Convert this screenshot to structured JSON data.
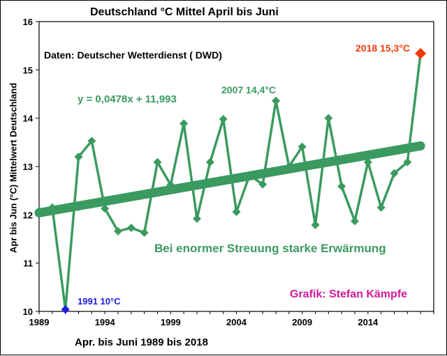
{
  "chart_data": {
    "type": "line",
    "title": "Deutschland °C Mittel April bis Juni",
    "xlabel": "Apr. bis Juni 1989 bis 2018",
    "ylabel": "Apr bis Jun (°C) Mittelwert Deutschland",
    "xlim": [
      1989,
      2019
    ],
    "ylim": [
      10,
      16
    ],
    "x_ticks": [
      1989,
      1994,
      1999,
      2004,
      2009,
      2014
    ],
    "y_ticks": [
      10,
      11,
      12,
      13,
      14,
      15,
      16
    ],
    "grid": false,
    "series": [
      {
        "color": "#3a9a60",
        "x": [
          1989,
          1990,
          1991,
          1992,
          1993,
          1994,
          1995,
          1996,
          1997,
          1998,
          1999,
          2000,
          2001,
          2002,
          2003,
          2004,
          2005,
          2006,
          2007,
          2008,
          2009,
          2010,
          2011,
          2012,
          2013,
          2014,
          2015,
          2016,
          2017,
          2018
        ],
        "values": [
          12.08,
          12.15,
          10.04,
          13.2,
          13.53,
          12.13,
          11.66,
          11.73,
          11.63,
          13.09,
          12.62,
          13.89,
          11.92,
          13.09,
          13.98,
          12.06,
          12.82,
          12.63,
          14.36,
          13.0,
          13.41,
          11.79,
          14.0,
          12.59,
          11.87,
          13.09,
          12.15,
          12.86,
          13.09,
          15.34
        ]
      }
    ],
    "trendline": {
      "color": "#3a9a60",
      "equation": "y = 0,0478x + 11,993",
      "slope": 0.0478,
      "intercept": 11.993
    },
    "annotations": {
      "max": {
        "text": "2018 15,3°C",
        "x": 2018,
        "y": 15.34,
        "color": "#f23a0b"
      },
      "peak_2007": {
        "text": "2007 14,4°C",
        "x": 2007,
        "y": 14.36
      },
      "min": {
        "text": "1991 10°C",
        "x": 1991,
        "y": 10.04,
        "color": "#1a1ae6"
      }
    },
    "source": "Daten: Deutscher Wetterdienst ( DWD)",
    "note": "Bei enormer Streuung starke Erwärmung",
    "credit": "Grafik: Stefan Kämpfe",
    "credit_color": "#d0199a"
  }
}
